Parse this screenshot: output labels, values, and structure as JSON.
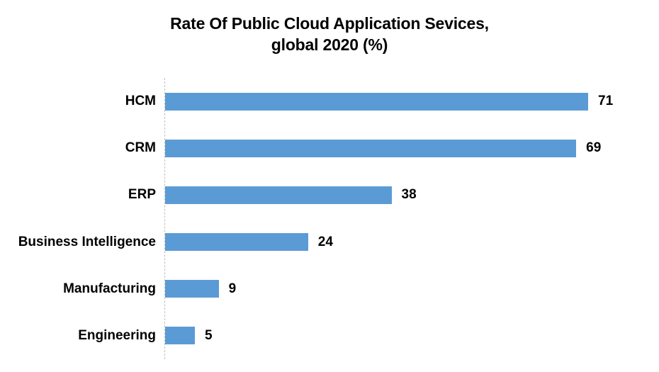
{
  "title": {
    "line1": "Rate Of Public Cloud Application Sevices,",
    "line2": "global 2020 (%)"
  },
  "chart_data": {
    "type": "bar",
    "orientation": "horizontal",
    "title": "Rate Of Public Cloud Application Sevices, global 2020 (%)",
    "categories": [
      "HCM",
      "CRM",
      "ERP",
      "Business Intelligence",
      "Manufacturing",
      "Engineering"
    ],
    "values": [
      71,
      69,
      38,
      24,
      9,
      5
    ],
    "value_suffix": "",
    "xlabel": "",
    "ylabel": "",
    "xlim": [
      0,
      71
    ],
    "grid": false,
    "legend": false,
    "data_labels_shown": true,
    "bar_color": "#5b9bd5",
    "axis_line_color": "#bfbfbf",
    "text_color": "#000000",
    "background_color": "#ffffff"
  }
}
